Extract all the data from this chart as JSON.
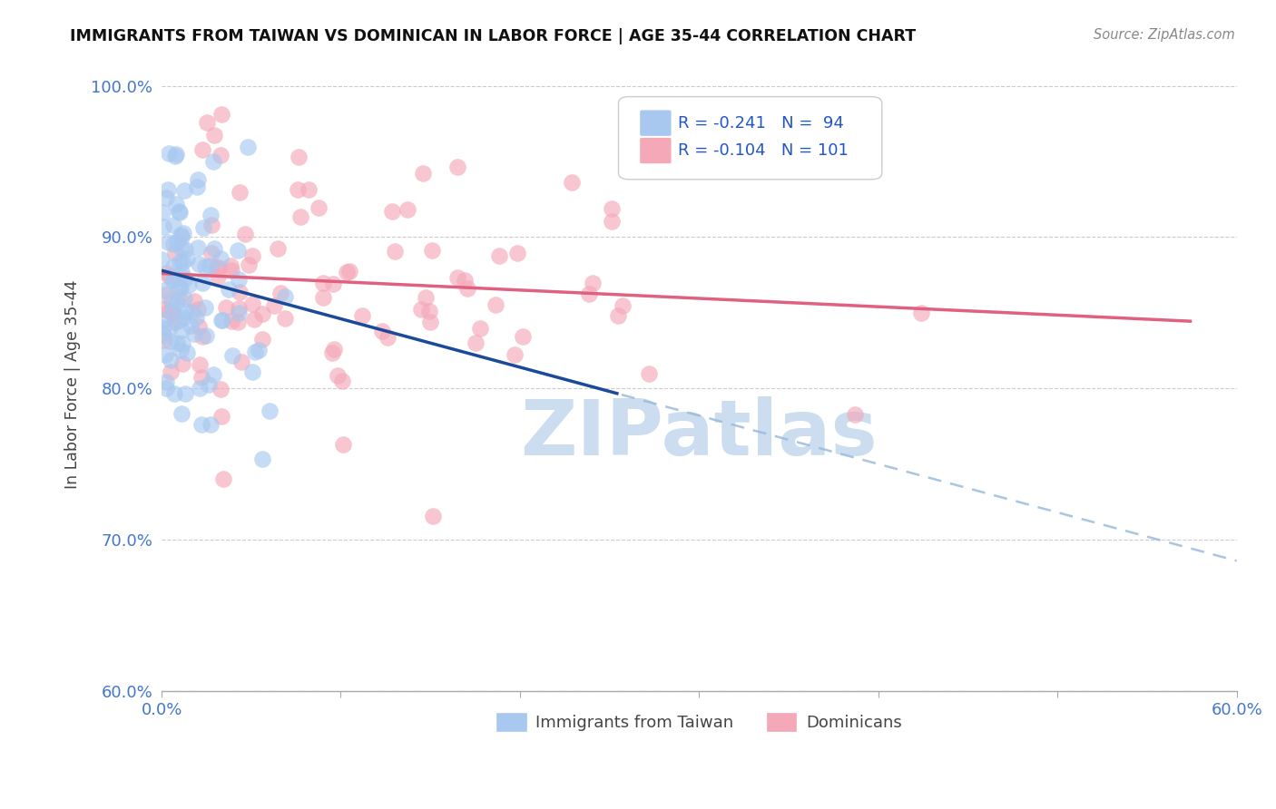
{
  "title": "IMMIGRANTS FROM TAIWAN VS DOMINICAN IN LABOR FORCE | AGE 35-44 CORRELATION CHART",
  "source": "Source: ZipAtlas.com",
  "ylabel": "In Labor Force | Age 35-44",
  "xlim": [
    0.0,
    0.6
  ],
  "ylim": [
    0.6,
    1.005
  ],
  "xticks": [
    0.0,
    0.1,
    0.2,
    0.3,
    0.4,
    0.5,
    0.6
  ],
  "xticklabels": [
    "0.0%",
    "",
    "",
    "",
    "",
    "",
    "60.0%"
  ],
  "yticks": [
    0.6,
    0.7,
    0.8,
    0.9,
    1.0
  ],
  "yticklabels": [
    "60.0%",
    "70.0%",
    "80.0%",
    "90.0%",
    "100.0%"
  ],
  "taiwan_color": "#a8c8f0",
  "dominican_color": "#f4a8b8",
  "taiwan_line_color": "#1a4a99",
  "dominican_line_color": "#e06080",
  "taiwan_dash_color": "#99bbdd",
  "background_color": "#ffffff",
  "grid_color": "#cccccc",
  "watermark": "ZIPatlas",
  "watermark_color": "#ccddf0",
  "legend_taiwan_label": "Immigrants from Taiwan",
  "legend_dominican_label": "Dominicans",
  "legend_R_taiwan": "R = -0.241   N =  94",
  "legend_R_dominican": "R = -0.104   N = 101"
}
